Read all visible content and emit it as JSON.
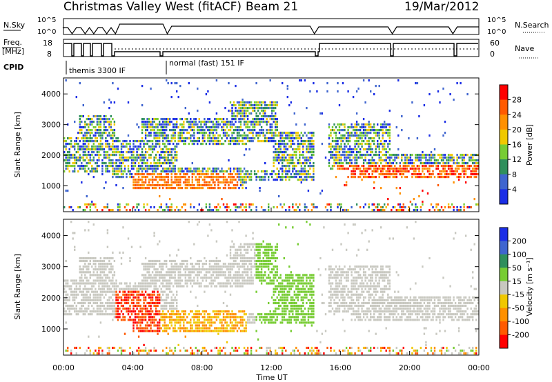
{
  "header": {
    "title": "Christmas Valley West (fitACF)",
    "beam": "Beam 21",
    "date": "19/Mar/2012"
  },
  "panels": {
    "nsky": {
      "label": "N.Sky",
      "ticks": [
        "10^5",
        "10^0"
      ],
      "right_label": "N.Search",
      "right_ticks": [
        "10^5",
        "10^0"
      ]
    },
    "freq": {
      "label_1": "Freq.",
      "label_2": "[MHz]",
      "ticks": [
        "18",
        "8"
      ],
      "right_label": "Nave",
      "right_ticks": [
        "60",
        "0"
      ]
    },
    "cpid": {
      "label": "CPID",
      "modes": [
        "themis 3300 IF",
        "normal (fast) 151 IF"
      ]
    }
  },
  "chart_data": [
    {
      "type": "heatmap",
      "name": "power",
      "ylabel": "Slant Range [km]",
      "yticks": [
        "4000",
        "3000",
        "2000",
        "1000"
      ],
      "ylim": [
        180,
        4500
      ],
      "xlim": [
        0,
        24
      ],
      "colorbar": {
        "label": "Power [dB]",
        "ticks": [
          "28",
          "24",
          "20",
          "16",
          "12",
          "8",
          "4"
        ],
        "colors": [
          "#ff0000",
          "#ff5a00",
          "#ff9000",
          "#f0c800",
          "#77cc33",
          "#2f8f5c",
          "#3f65cf",
          "#1b2ee6"
        ]
      }
    },
    {
      "type": "heatmap",
      "name": "velocity",
      "ylabel": "Slant Range [km]",
      "yticks": [
        "4000",
        "3000",
        "2000",
        "1000"
      ],
      "ylim": [
        180,
        4500
      ],
      "xlim": [
        0,
        24
      ],
      "xlabel": "Time UT",
      "xticks": [
        "00:00",
        "04:00",
        "08:00",
        "12:00",
        "16:00",
        "20:00",
        "00:00"
      ],
      "colorbar": {
        "label": "Velocity [m s⁻¹]",
        "ticks": [
          "200",
          "100",
          "50",
          "15",
          "-15",
          "-50",
          "-100",
          "-200"
        ],
        "colors": [
          "#1b2ee6",
          "#3f65cf",
          "#2f8f5c",
          "#77cc33",
          "#c8c8c0",
          "#f0c800",
          "#ff9000",
          "#ff5a00",
          "#ff0000"
        ]
      }
    }
  ]
}
